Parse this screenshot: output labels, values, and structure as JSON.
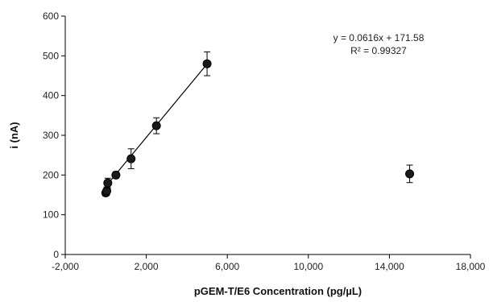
{
  "chart_data": {
    "type": "scatter",
    "title": "",
    "xlabel": "pGEM-T/E6 Concentration (pg/µL)",
    "ylabel": "i (nA)",
    "xlim": [
      -2000,
      18000
    ],
    "ylim": [
      0,
      600
    ],
    "x_ticks": [
      -2000,
      2000,
      6000,
      10000,
      14000,
      18000
    ],
    "x_tick_labels": [
      "-2,000",
      "2,000",
      "6,000",
      "10,000",
      "14,000",
      "18,000"
    ],
    "y_ticks": [
      0,
      100,
      200,
      300,
      400,
      500,
      600
    ],
    "y_tick_labels": [
      "0",
      "100",
      "200",
      "300",
      "400",
      "500",
      "600"
    ],
    "grid": false,
    "series": [
      {
        "points": [
          {
            "x": 0,
            "y": 155,
            "err": 8
          },
          {
            "x": 50,
            "y": 160,
            "err": 10
          },
          {
            "x": 100,
            "y": 180,
            "err": 12
          },
          {
            "x": 500,
            "y": 200,
            "err": 8
          },
          {
            "x": 1250,
            "y": 241,
            "err": 25
          },
          {
            "x": 2500,
            "y": 324,
            "err": 20
          },
          {
            "x": 5000,
            "y": 480,
            "err": 30
          },
          {
            "x": 15000,
            "y": 203,
            "err": 22
          }
        ]
      }
    ],
    "trendline": {
      "slope": 0.0616,
      "intercept": 171.58,
      "x_range": [
        0,
        5000
      ]
    },
    "annotations": {
      "equation": "y = 0.0616x + 171.58",
      "r_squared": "R² = 0.99327"
    }
  }
}
